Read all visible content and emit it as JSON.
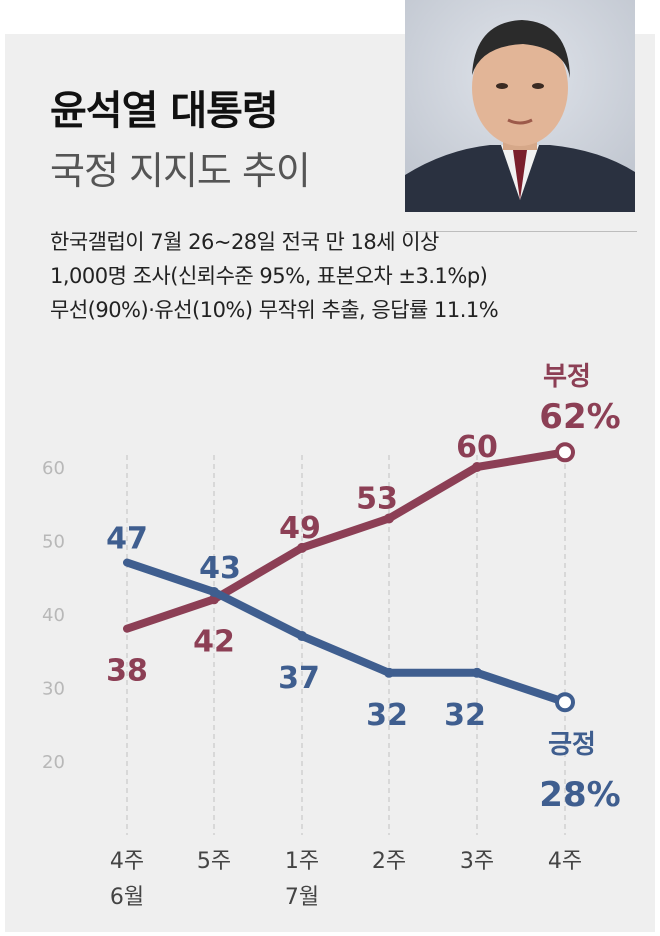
{
  "header": {
    "title": "윤석열 대통령",
    "subtitle": "국정 지지도 추이"
  },
  "notes": [
    "한국갤럽이 7월 26~28일 전국 만 18세 이상",
    "1,000명 조사(신뢰수준 95%, 표본오차 ±3.1%p)",
    "무선(90%)·유선(10%) 무작위 추출, 응답률 11.1%"
  ],
  "colors": {
    "negative": "#8c3f55",
    "positive": "#3f5e8f",
    "background": "#efefef"
  },
  "chart_data": {
    "type": "line",
    "x": [
      "4주|6월",
      "5주",
      "1주|7월",
      "2주",
      "3주",
      "4주"
    ],
    "ylim": [
      20,
      60
    ],
    "yticks": [
      60,
      50,
      40,
      30,
      20
    ],
    "grid": "vertical dashed",
    "series": [
      {
        "name": "부정",
        "values": [
          38,
          42,
          49,
          53,
          60,
          62
        ],
        "final_label": "62%"
      },
      {
        "name": "긍정",
        "values": [
          47,
          43,
          37,
          32,
          32,
          28
        ],
        "final_label": "28%"
      }
    ]
  }
}
